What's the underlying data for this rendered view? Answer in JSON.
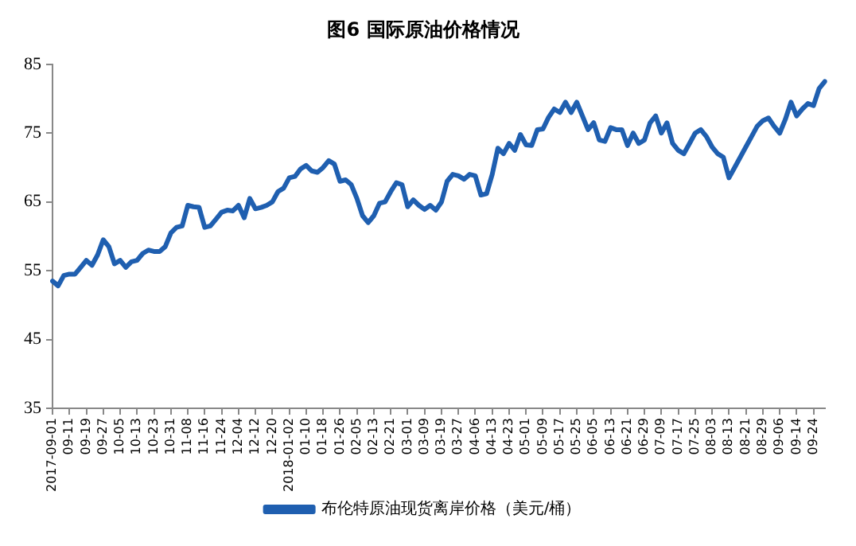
{
  "chart_data": {
    "type": "line",
    "title": "图6 国际原油价格情况",
    "categories": [
      "2017-09-01",
      null,
      null,
      "09-11",
      null,
      null,
      "09-19",
      null,
      null,
      "09-27",
      null,
      null,
      "10-05",
      null,
      null,
      "10-13",
      null,
      null,
      "10-23",
      null,
      null,
      "10-31",
      null,
      null,
      "11-08",
      null,
      null,
      "11-16",
      null,
      null,
      "11-24",
      null,
      null,
      "12-04",
      null,
      null,
      "12-12",
      null,
      null,
      "12-20",
      null,
      null,
      "2018-01-02",
      null,
      null,
      "01-10",
      null,
      null,
      "01-18",
      null,
      null,
      "01-26",
      null,
      null,
      "02-05",
      null,
      null,
      "02-13",
      null,
      null,
      "02-21",
      null,
      null,
      "03-01",
      null,
      null,
      "03-09",
      null,
      null,
      "03-19",
      null,
      null,
      "03-27",
      null,
      null,
      "04-06",
      null,
      null,
      "04-13",
      null,
      null,
      "04-23",
      null,
      null,
      "05-01",
      null,
      null,
      "05-09",
      null,
      null,
      "05-17",
      null,
      null,
      "05-25",
      null,
      null,
      "06-05",
      null,
      null,
      "06-13",
      null,
      null,
      "06-21",
      null,
      null,
      "06-29",
      null,
      null,
      "07-09",
      null,
      null,
      "07-17",
      null,
      null,
      "07-25",
      null,
      null,
      "08-03",
      null,
      null,
      "08-13",
      null,
      null,
      "08-21",
      null,
      null,
      "08-29",
      null,
      null,
      "09-06",
      null,
      null,
      "09-14",
      null,
      null,
      "09-24",
      null,
      null
    ],
    "series": [
      {
        "name": "布伦特原油现货离岸价格（美元/桶）",
        "color": "#1f5fb0",
        "values": [
          53.5,
          52.8,
          54.3,
          54.5,
          54.5,
          55.5,
          56.5,
          55.8,
          57.3,
          59.5,
          58.5,
          56,
          56.5,
          55.5,
          56.3,
          56.5,
          57.5,
          58,
          57.8,
          57.8,
          58.5,
          60.5,
          61.3,
          61.5,
          64.5,
          64.3,
          64.2,
          61.3,
          61.5,
          62.5,
          63.5,
          63.8,
          63.7,
          64.5,
          62.7,
          65.5,
          64,
          64.2,
          64.5,
          65,
          66.5,
          67,
          68.5,
          68.7,
          69.8,
          70.3,
          69.5,
          69.3,
          70,
          71,
          70.5,
          68,
          68.2,
          67.5,
          65.5,
          63,
          62,
          63,
          64.8,
          65,
          66.5,
          67.8,
          67.5,
          64.3,
          65.3,
          64.5,
          63.9,
          64.5,
          63.8,
          65,
          68,
          69,
          68.8,
          68.3,
          69,
          68.8,
          66,
          66.2,
          69,
          72.8,
          72,
          73.5,
          72.5,
          74.8,
          73.3,
          73.2,
          75.5,
          75.6,
          77.3,
          78.5,
          78,
          79.5,
          78,
          79.5,
          77.5,
          75.5,
          76.5,
          74,
          73.8,
          75.8,
          75.5,
          75.5,
          73.2,
          75,
          73.5,
          74,
          76.5,
          77.5,
          75,
          76.5,
          73.5,
          72.5,
          72,
          73.5,
          75,
          75.5,
          74.5,
          73,
          72,
          71.5,
          68.5,
          70,
          71.5,
          73,
          74.5,
          76,
          76.8,
          77.2,
          76,
          75,
          77,
          79.5,
          77.5,
          78.5,
          79.3,
          79,
          81.5,
          82.5
        ]
      }
    ],
    "ylim": [
      35,
      85
    ],
    "yticks": [
      35,
      45,
      55,
      65,
      75,
      85
    ],
    "grid": false,
    "legend": "bottom",
    "marker": "none",
    "line_style": "solid"
  }
}
